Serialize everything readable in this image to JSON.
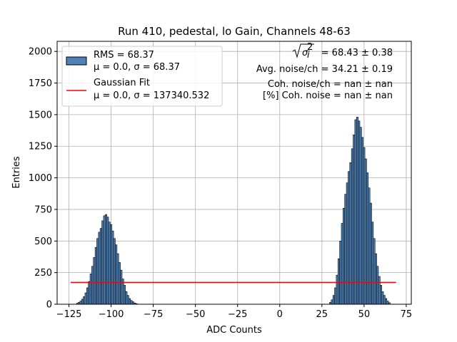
{
  "chart_data": {
    "type": "bar",
    "title": "Run 410, pedestal, lo Gain, Channels 48-63",
    "xlabel": "ADC Counts",
    "ylabel": "Entries",
    "xlim": [
      -132,
      78
    ],
    "ylim": [
      0,
      2080
    ],
    "xticks": [
      -125,
      -100,
      -75,
      -50,
      -25,
      0,
      25,
      50,
      75
    ],
    "xtick_labels": [
      "−125",
      "−100",
      "−75",
      "−50",
      "−25",
      "0",
      "25",
      "50",
      "75"
    ],
    "yticks": [
      0,
      250,
      500,
      750,
      1000,
      1250,
      1500,
      1750,
      2000
    ],
    "ytick_labels": [
      "0",
      "250",
      "500",
      "750",
      "1000",
      "1250",
      "1500",
      "1750",
      "2000"
    ],
    "grid": true,
    "legend_placement": "top-left",
    "series": [
      {
        "name": "RMS = 68.37",
        "subtitle": "μ = 0.0, σ = 68.37",
        "kind": "histogram",
        "bin_width": 1,
        "color": "#4f83b8",
        "edge_color": "#000000",
        "bins": [
          [
            -120,
            8
          ],
          [
            -119,
            15
          ],
          [
            -118,
            25
          ],
          [
            -117,
            40
          ],
          [
            -116,
            60
          ],
          [
            -115,
            90
          ],
          [
            -114,
            130
          ],
          [
            -113,
            180
          ],
          [
            -112,
            240
          ],
          [
            -111,
            300
          ],
          [
            -110,
            370
          ],
          [
            -109,
            450
          ],
          [
            -108,
            520
          ],
          [
            -107,
            570
          ],
          [
            -106,
            600
          ],
          [
            -105,
            660
          ],
          [
            -104,
            700
          ],
          [
            -103,
            710
          ],
          [
            -102,
            690
          ],
          [
            -101,
            650
          ],
          [
            -100,
            630
          ],
          [
            -99,
            580
          ],
          [
            -98,
            520
          ],
          [
            -97,
            470
          ],
          [
            -96,
            400
          ],
          [
            -95,
            330
          ],
          [
            -94,
            270
          ],
          [
            -93,
            200
          ],
          [
            -92,
            150
          ],
          [
            -91,
            100
          ],
          [
            -90,
            70
          ],
          [
            -89,
            45
          ],
          [
            -88,
            30
          ],
          [
            -87,
            20
          ],
          [
            -86,
            10
          ],
          [
            -85,
            5
          ],
          [
            30,
            15
          ],
          [
            31,
            35
          ],
          [
            32,
            70
          ],
          [
            33,
            130
          ],
          [
            34,
            230
          ],
          [
            35,
            360
          ],
          [
            36,
            500
          ],
          [
            37,
            640
          ],
          [
            38,
            760
          ],
          [
            39,
            870
          ],
          [
            40,
            960
          ],
          [
            41,
            1050
          ],
          [
            42,
            1120
          ],
          [
            43,
            1230
          ],
          [
            44,
            1340
          ],
          [
            45,
            1460
          ],
          [
            46,
            1480
          ],
          [
            47,
            1450
          ],
          [
            48,
            1400
          ],
          [
            49,
            1320
          ],
          [
            50,
            1240
          ],
          [
            51,
            1150
          ],
          [
            52,
            1040
          ],
          [
            53,
            920
          ],
          [
            54,
            800
          ],
          [
            55,
            650
          ],
          [
            56,
            520
          ],
          [
            57,
            400
          ],
          [
            58,
            300
          ],
          [
            59,
            220
          ],
          [
            60,
            150
          ],
          [
            61,
            100
          ],
          [
            62,
            70
          ],
          [
            63,
            45
          ],
          [
            64,
            25
          ],
          [
            65,
            12
          ]
        ]
      },
      {
        "name": "Gaussian Fit",
        "subtitle": "μ = 0.0, σ = 137340.532",
        "kind": "line",
        "color": "#ff0000",
        "x": [
          -124,
          69
        ],
        "y": [
          172,
          172
        ]
      }
    ],
    "annotations": [
      "= 68.43 ± 0.38",
      "Avg. noise/ch = 34.21 ± 0.19",
      "Coh. noise/ch = nan ± nan",
      "[%] Coh. noise = nan ± nan"
    ]
  }
}
